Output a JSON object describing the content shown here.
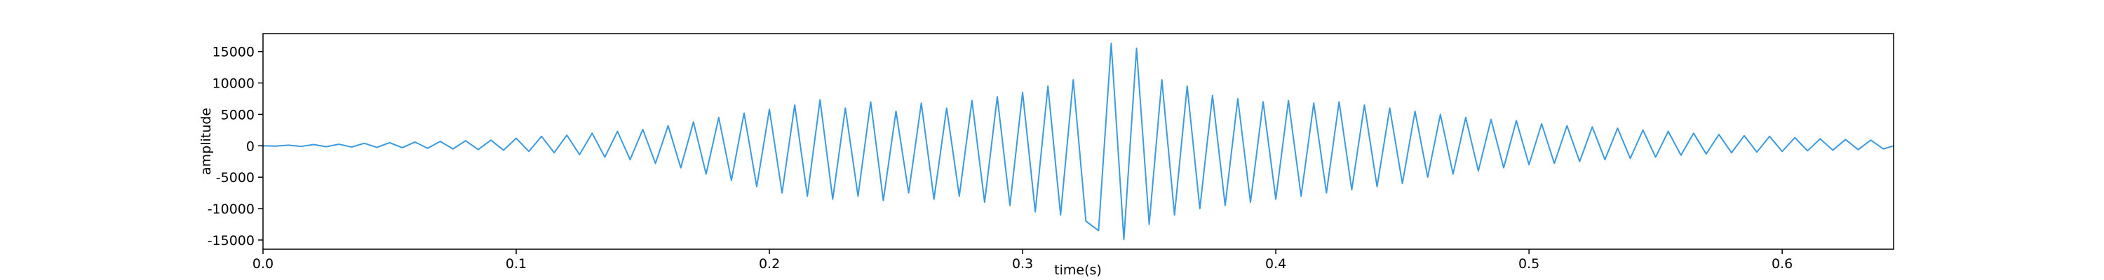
{
  "chart_data": {
    "type": "line",
    "xlabel": "time(s)",
    "ylabel": "amplitude",
    "x": [
      0,
      0.005,
      0.01,
      0.015,
      0.02,
      0.025,
      0.03,
      0.035,
      0.04,
      0.045,
      0.05,
      0.055,
      0.06,
      0.065,
      0.07,
      0.075,
      0.08,
      0.085,
      0.09,
      0.095,
      0.1,
      0.105,
      0.11,
      0.115,
      0.12,
      0.125,
      0.13,
      0.135,
      0.14,
      0.145,
      0.15,
      0.155,
      0.16,
      0.165,
      0.17,
      0.175,
      0.18,
      0.185,
      0.19,
      0.195,
      0.2,
      0.205,
      0.21,
      0.215,
      0.22,
      0.225,
      0.23,
      0.235,
      0.24,
      0.245,
      0.25,
      0.255,
      0.26,
      0.265,
      0.27,
      0.275,
      0.28,
      0.285,
      0.29,
      0.295,
      0.3,
      0.305,
      0.31,
      0.315,
      0.32,
      0.325,
      0.33,
      0.335,
      0.34,
      0.345,
      0.35,
      0.355,
      0.36,
      0.365,
      0.37,
      0.375,
      0.38,
      0.385,
      0.39,
      0.395,
      0.4,
      0.405,
      0.41,
      0.415,
      0.42,
      0.425,
      0.43,
      0.435,
      0.44,
      0.445,
      0.45,
      0.455,
      0.46,
      0.465,
      0.47,
      0.475,
      0.48,
      0.485,
      0.49,
      0.495,
      0.5,
      0.505,
      0.51,
      0.515,
      0.52,
      0.525,
      0.53,
      0.535,
      0.54,
      0.545,
      0.55,
      0.555,
      0.56,
      0.565,
      0.57,
      0.575,
      0.58,
      0.585,
      0.59,
      0.595,
      0.6,
      0.605,
      0.61,
      0.615,
      0.62,
      0.625,
      0.63,
      0.635,
      0.64,
      0.644
    ],
    "series": [
      {
        "color": "#3c9ae0",
        "values": [
          0,
          -50,
          100,
          -100,
          200,
          -150,
          250,
          -200,
          400,
          -250,
          500,
          -300,
          600,
          -400,
          700,
          -500,
          800,
          -600,
          900,
          -700,
          1200,
          -900,
          1500,
          -1100,
          1700,
          -1400,
          2000,
          -1800,
          2300,
          -2200,
          2600,
          -2800,
          3200,
          -3500,
          3800,
          -4500,
          4500,
          -5500,
          5200,
          -6500,
          5800,
          -7500,
          6500,
          -8000,
          7300,
          -8500,
          6000,
          -8000,
          7000,
          -8700,
          5500,
          -7500,
          6800,
          -8500,
          6000,
          -8000,
          7200,
          -9000,
          7800,
          -9500,
          8500,
          -10500,
          9500,
          -11000,
          10500,
          -12000,
          -13500,
          16300,
          -14900,
          15500,
          -12500,
          10500,
          -11000,
          9500,
          -10000,
          8000,
          -9500,
          7500,
          -9000,
          7000,
          -8500,
          7200,
          -8000,
          6800,
          -7500,
          7000,
          -7000,
          6500,
          -6500,
          6000,
          -6000,
          5500,
          -5000,
          5000,
          -4500,
          4500,
          -4000,
          4200,
          -3500,
          4000,
          -3000,
          3500,
          -2800,
          3200,
          -2500,
          3000,
          -2200,
          2800,
          -2000,
          2500,
          -1800,
          2300,
          -1500,
          2000,
          -1300,
          1800,
          -1100,
          1600,
          -1000,
          1500,
          -900,
          1300,
          -800,
          1100,
          -700,
          1000,
          -600,
          900,
          -500,
          0
        ]
      }
    ],
    "xlim": [
      0,
      0.644
    ],
    "ylim": [
      -16460,
      17860
    ],
    "xticks": [
      {
        "value": 0,
        "label": "0.0"
      },
      0.1,
      0.2,
      0.3,
      0.4,
      0.5,
      0.6
    ],
    "yticks": [
      -15000,
      -10000,
      -5000,
      0,
      5000,
      10000,
      15000
    ]
  }
}
